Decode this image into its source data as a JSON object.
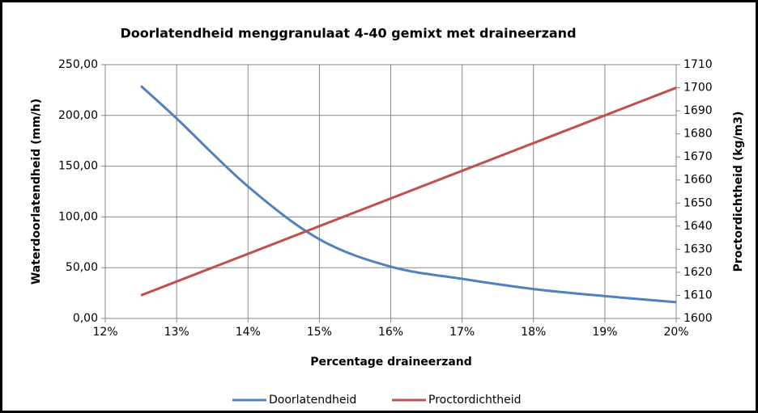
{
  "chart_data": {
    "type": "line",
    "title": "Doorlatendheid menggranulaat 4-40 gemixt met draineerzand",
    "xlabel": "Percentage draineerzand",
    "ylabel": "Waterdoorlatendheid (mm/h)",
    "y2label": "Proctordichtheid (kg/m3)",
    "x": [
      12.5,
      13,
      14,
      15,
      16,
      17,
      18,
      19,
      20
    ],
    "series": [
      {
        "name": "Doorlatendheid",
        "color": "#4f81bd",
        "values": [
          229,
          197,
          130,
          78,
          51,
          39,
          29,
          22,
          16
        ]
      },
      {
        "name": "Proctordichtheid",
        "color": "#c0504d",
        "axis": "y2",
        "values": [
          1610,
          1616,
          1628,
          1640,
          1652,
          1664,
          1676,
          1688,
          1700
        ]
      }
    ],
    "xlim": [
      12,
      20
    ],
    "xticks": [
      {
        "value": 12,
        "label": "12%"
      },
      {
        "value": 13,
        "label": "13%"
      },
      {
        "value": 14,
        "label": "14%"
      },
      {
        "value": 15,
        "label": "15%"
      },
      {
        "value": 16,
        "label": "16%"
      },
      {
        "value": 17,
        "label": "17%"
      },
      {
        "value": 18,
        "label": "18%"
      },
      {
        "value": 19,
        "label": "19%"
      },
      {
        "value": 20,
        "label": "20%"
      }
    ],
    "ylim": [
      0,
      250
    ],
    "yticks": [
      {
        "value": 0,
        "label": "0,00"
      },
      {
        "value": 50,
        "label": "50,00"
      },
      {
        "value": 100,
        "label": "100,00"
      },
      {
        "value": 150,
        "label": "150,00"
      },
      {
        "value": 200,
        "label": "200,00"
      },
      {
        "value": 250,
        "label": "250,00"
      }
    ],
    "y2lim": [
      1600,
      1710
    ],
    "y2ticks": [
      1600,
      1610,
      1620,
      1630,
      1640,
      1650,
      1660,
      1670,
      1680,
      1690,
      1700,
      1710
    ],
    "grid": true,
    "legend": "bottom"
  }
}
